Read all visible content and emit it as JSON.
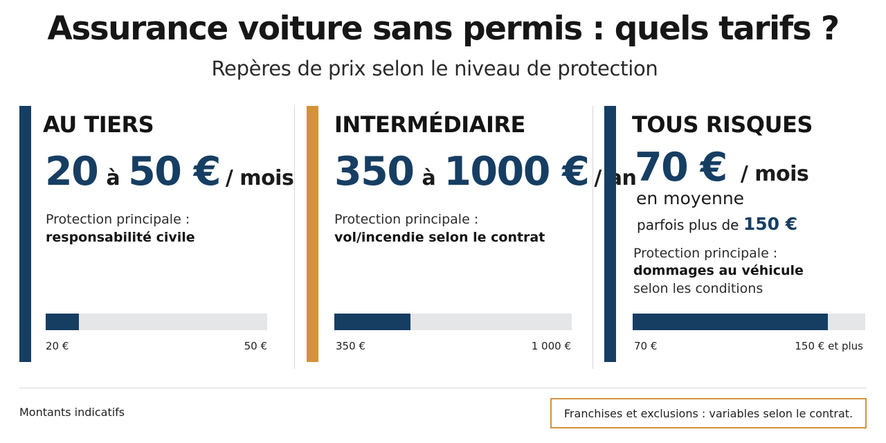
{
  "header": {
    "title": "Assurance voiture sans permis : quels tarifs ?",
    "subtitle": "Repères de prix selon le niveau de protection"
  },
  "colors": {
    "navy": "#163e63",
    "gold": "#d4923a",
    "track": "#e5e6e7"
  },
  "cards": [
    {
      "heading": "AU TIERS",
      "price_from": "20",
      "price_sep": "à",
      "price_to": "50 €",
      "price_unit": "/ mois",
      "protection_label": "Protection principale :",
      "protection_value": "responsabilité civile",
      "range_min": "20 €",
      "range_max": "50 €",
      "bar_fill_fraction": 0.15
    },
    {
      "heading": "INTERMÉDIAIRE",
      "price_from": "350",
      "price_sep": "à",
      "price_to": "1000 €",
      "price_unit": "/ an",
      "protection_label": "Protection principale :",
      "protection_value": "vol/incendie selon le contrat",
      "range_min": "350 €",
      "range_max": "1 000 €",
      "bar_fill_fraction": 0.32
    },
    {
      "heading": "TOUS RISQUES",
      "price_main": "70 €",
      "price_unit": "/ mois",
      "average_label": "en moyenne",
      "sometimes_label": "parfois plus de",
      "sometimes_value": "150 €",
      "protection_label": "Protection principale :",
      "protection_value": "dommages au véhicule",
      "protection_extra": "selon les conditions",
      "range_min": "70 €",
      "range_max": "150 € et plus",
      "bar_fill_fraction": 0.84
    }
  ],
  "footer": {
    "note": "Montants indicatifs",
    "boxed_note": "Franchises et exclusions : variables selon le contrat."
  }
}
